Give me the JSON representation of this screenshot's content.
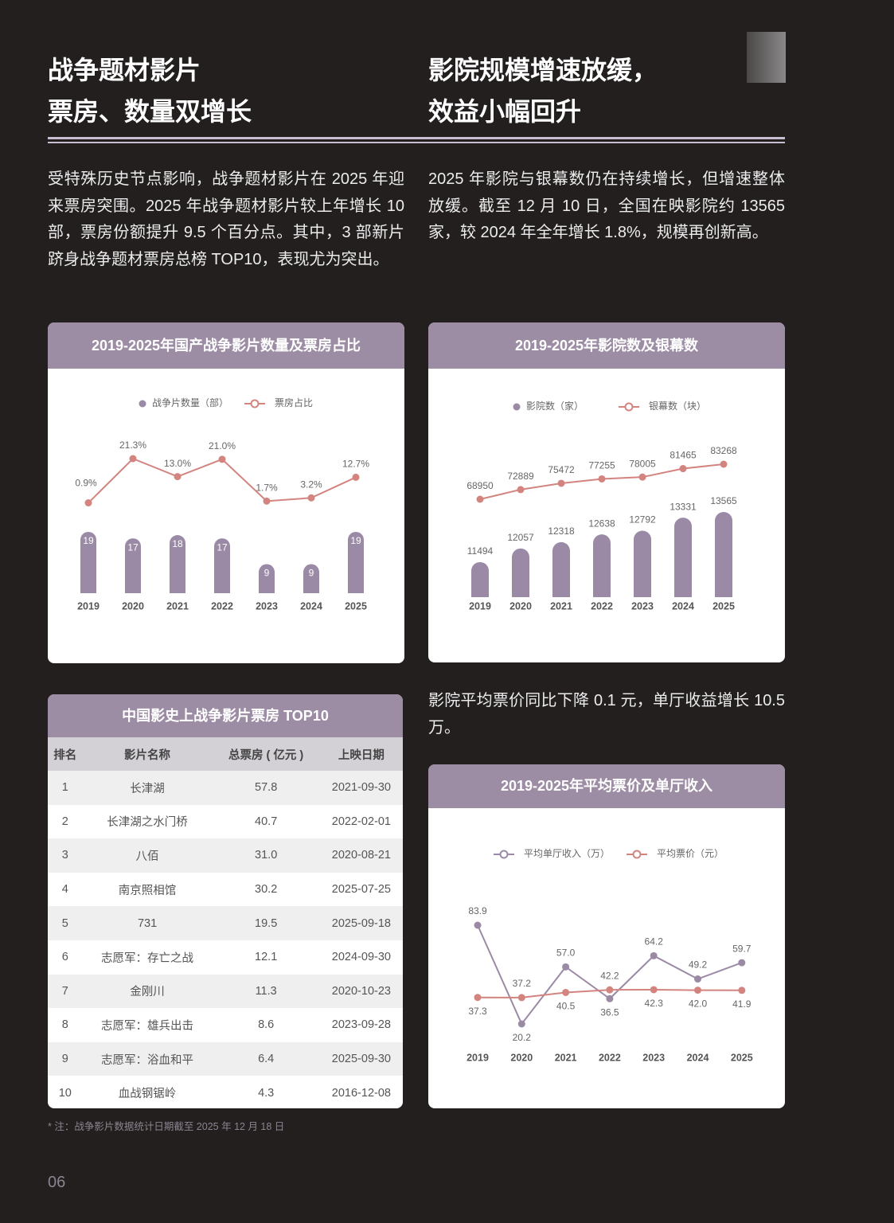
{
  "header": {
    "left_title": [
      "战争题材影片",
      "票房、数量双增长"
    ],
    "right_title": [
      "影院规模增速放缓，",
      "效益小幅回升"
    ]
  },
  "paragraphs": [
    "受特殊历史节点影响，战争题材影片在 2025 年迎来票房突围。2025 年战争题材影片较上年增长 10 部，票房份额提升 9.5 个百分点。其中，3 部新片跻身战争题材票房总榜 TOP10，表现尤为突出。",
    "2025 年影院与银幕数仍在持续增长，但增速整体放缓。截至 12 月 10 日，全国在映影院约 13565 家，较 2024 年全年增长 1.8%，规模再创新高。",
    "影院平均票价同比下降 0.1 元，单厅收益增长 10.5 万。"
  ],
  "chart_data": [
    {
      "type": "combo",
      "title": "2019-2025年国产战争影片数量及票房占比",
      "categories": [
        "2019",
        "2020",
        "2021",
        "2022",
        "2023",
        "2024",
        "2025"
      ],
      "series": [
        {
          "name": "战争片数量（部）",
          "mark": "bar",
          "color": "#9b8aa5",
          "values": [
            19,
            17,
            18,
            17,
            9,
            9,
            19
          ]
        },
        {
          "name": "票房占比",
          "mark": "line",
          "color": "#d3847f",
          "values": [
            0.9,
            21.3,
            13.0,
            21.0,
            1.7,
            3.2,
            12.7
          ],
          "value_labels": [
            "0.9%",
            "21.3%",
            "13.0%",
            "21.0%",
            "1.7%",
            "3.2%",
            "12.7%"
          ]
        }
      ]
    },
    {
      "type": "combo",
      "title": "2019-2025年影院数及银幕数",
      "categories": [
        "2019",
        "2020",
        "2021",
        "2022",
        "2023",
        "2024",
        "2025"
      ],
      "series": [
        {
          "name": "影院数（家）",
          "mark": "bar",
          "color": "#9b8aa5",
          "values": [
            11494,
            12057,
            12318,
            12638,
            12792,
            13331,
            13565
          ]
        },
        {
          "name": "银幕数（块）",
          "mark": "line",
          "color": "#d3847f",
          "values": [
            68950,
            72889,
            75472,
            77255,
            78005,
            81465,
            83268
          ]
        }
      ]
    },
    {
      "type": "line",
      "title": "2019-2025年平均票价及单厅收入",
      "categories": [
        "2019",
        "2020",
        "2021",
        "2022",
        "2023",
        "2024",
        "2025"
      ],
      "series": [
        {
          "name": "平均单厅收入（万）",
          "color": "#9b8aa5",
          "values": [
            83.9,
            20.2,
            57.0,
            36.5,
            64.2,
            49.2,
            59.7
          ],
          "value_labels": [
            "83.9",
            "20.2",
            "57.0",
            "36.5",
            "64.2",
            "49.2",
            "59.7"
          ]
        },
        {
          "name": "平均票价（元）",
          "color": "#d3847f",
          "values": [
            37.3,
            37.2,
            40.5,
            42.2,
            42.3,
            42.0,
            41.9
          ],
          "value_labels": [
            "37.3",
            "37.2",
            "40.5",
            "42.2",
            "42.3",
            "42.0",
            "41.9"
          ]
        }
      ]
    }
  ],
  "table": {
    "title": "中国影史上战争影片票房 TOP10",
    "columns": [
      "排名",
      "影片名称",
      "总票房 ( 亿元 )",
      "上映日期"
    ],
    "rows": [
      [
        "1",
        "长津湖",
        "57.8",
        "2021-09-30"
      ],
      [
        "2",
        "长津湖之水门桥",
        "40.7",
        "2022-02-01"
      ],
      [
        "3",
        "八佰",
        "31.0",
        "2020-08-21"
      ],
      [
        "4",
        "南京照相馆",
        "30.2",
        "2025-07-25"
      ],
      [
        "5",
        "731",
        "19.5",
        "2025-09-18"
      ],
      [
        "6",
        "志愿军：存亡之战",
        "12.1",
        "2024-09-30"
      ],
      [
        "7",
        "金刚川",
        "11.3",
        "2020-10-23"
      ],
      [
        "8",
        "志愿军：雄兵出击",
        "8.6",
        "2023-09-28"
      ],
      [
        "9",
        "志愿军：浴血和平",
        "6.4",
        "2025-09-30"
      ],
      [
        "10",
        "血战钢锯岭",
        "4.3",
        "2016-12-08"
      ]
    ]
  },
  "note": "* 注：战争影片数据统计日期截至 2025 年 12 月 18 日",
  "page_number": "06"
}
